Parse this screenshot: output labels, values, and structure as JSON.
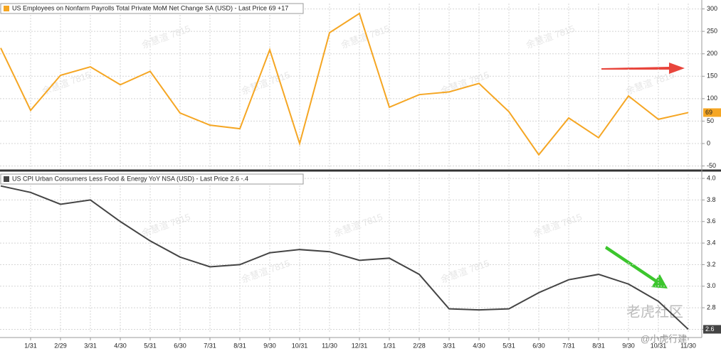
{
  "chart_data": [
    {
      "type": "line",
      "legend": "US Employees on Nonfarm Payrolls Total Private MoM Net Change SA (USD) - Last Price 69 +17",
      "series": [
        {
          "name": "US Employees on Nonfarm Payrolls Total Private MoM Net Change SA (USD)",
          "color": "#f5a623",
          "values": [
            213,
            74,
            152,
            171,
            131,
            161,
            68,
            41,
            33,
            209,
            0,
            247,
            290,
            81,
            109,
            115,
            134,
            71,
            -25,
            57,
            13,
            106,
            54,
            69
          ]
        }
      ],
      "ylim": [
        -57,
        312
      ],
      "yticks": [
        -50,
        0,
        50,
        100,
        150,
        200,
        250,
        300
      ],
      "grid": true
    },
    {
      "type": "line",
      "legend": "US CPI Urban Consumers Less Food & Energy YoY NSA (USD) - Last Price 2.6 -.4",
      "categories": [
        null,
        "1/31",
        "2/29",
        "3/31",
        "4/30",
        "5/31",
        "6/30",
        "7/31",
        "8/31",
        "9/30",
        "10/31",
        "11/30",
        "12/31",
        "1/31",
        "2/28",
        "3/31",
        "4/30",
        "5/31",
        "6/30",
        "7/31",
        "8/31",
        "9/30",
        "10/31",
        "11/30"
      ],
      "series": [
        {
          "name": "US CPI Urban Consumers Less Food & Energy YoY NSA (USD)",
          "color": "#444444",
          "values": [
            3.93,
            3.87,
            3.76,
            3.8,
            3.6,
            3.42,
            3.27,
            3.18,
            3.2,
            3.31,
            3.34,
            3.32,
            3.24,
            3.26,
            3.11,
            2.79,
            2.78,
            2.79,
            2.94,
            3.06,
            3.11,
            3.02,
            2.86,
            2.6
          ]
        }
      ],
      "ylim": [
        2.57,
        4.04
      ],
      "yticks": [
        {
          "value": 2.6,
          "label": "2.6"
        },
        {
          "value": 2.8,
          "label": "2.8"
        },
        {
          "value": 3,
          "label": "3.0"
        },
        {
          "value": 3.2,
          "label": "3.2"
        },
        {
          "value": 3.4,
          "label": "3.4"
        },
        {
          "value": 3.6,
          "label": "3.6"
        },
        {
          "value": 3.8,
          "label": "3.8"
        },
        {
          "value": 4,
          "label": "4.0"
        }
      ],
      "grid": true
    }
  ],
  "watermark": "余慧渲 7815",
  "logo": "老虎社区",
  "handle": "@小虎行建"
}
